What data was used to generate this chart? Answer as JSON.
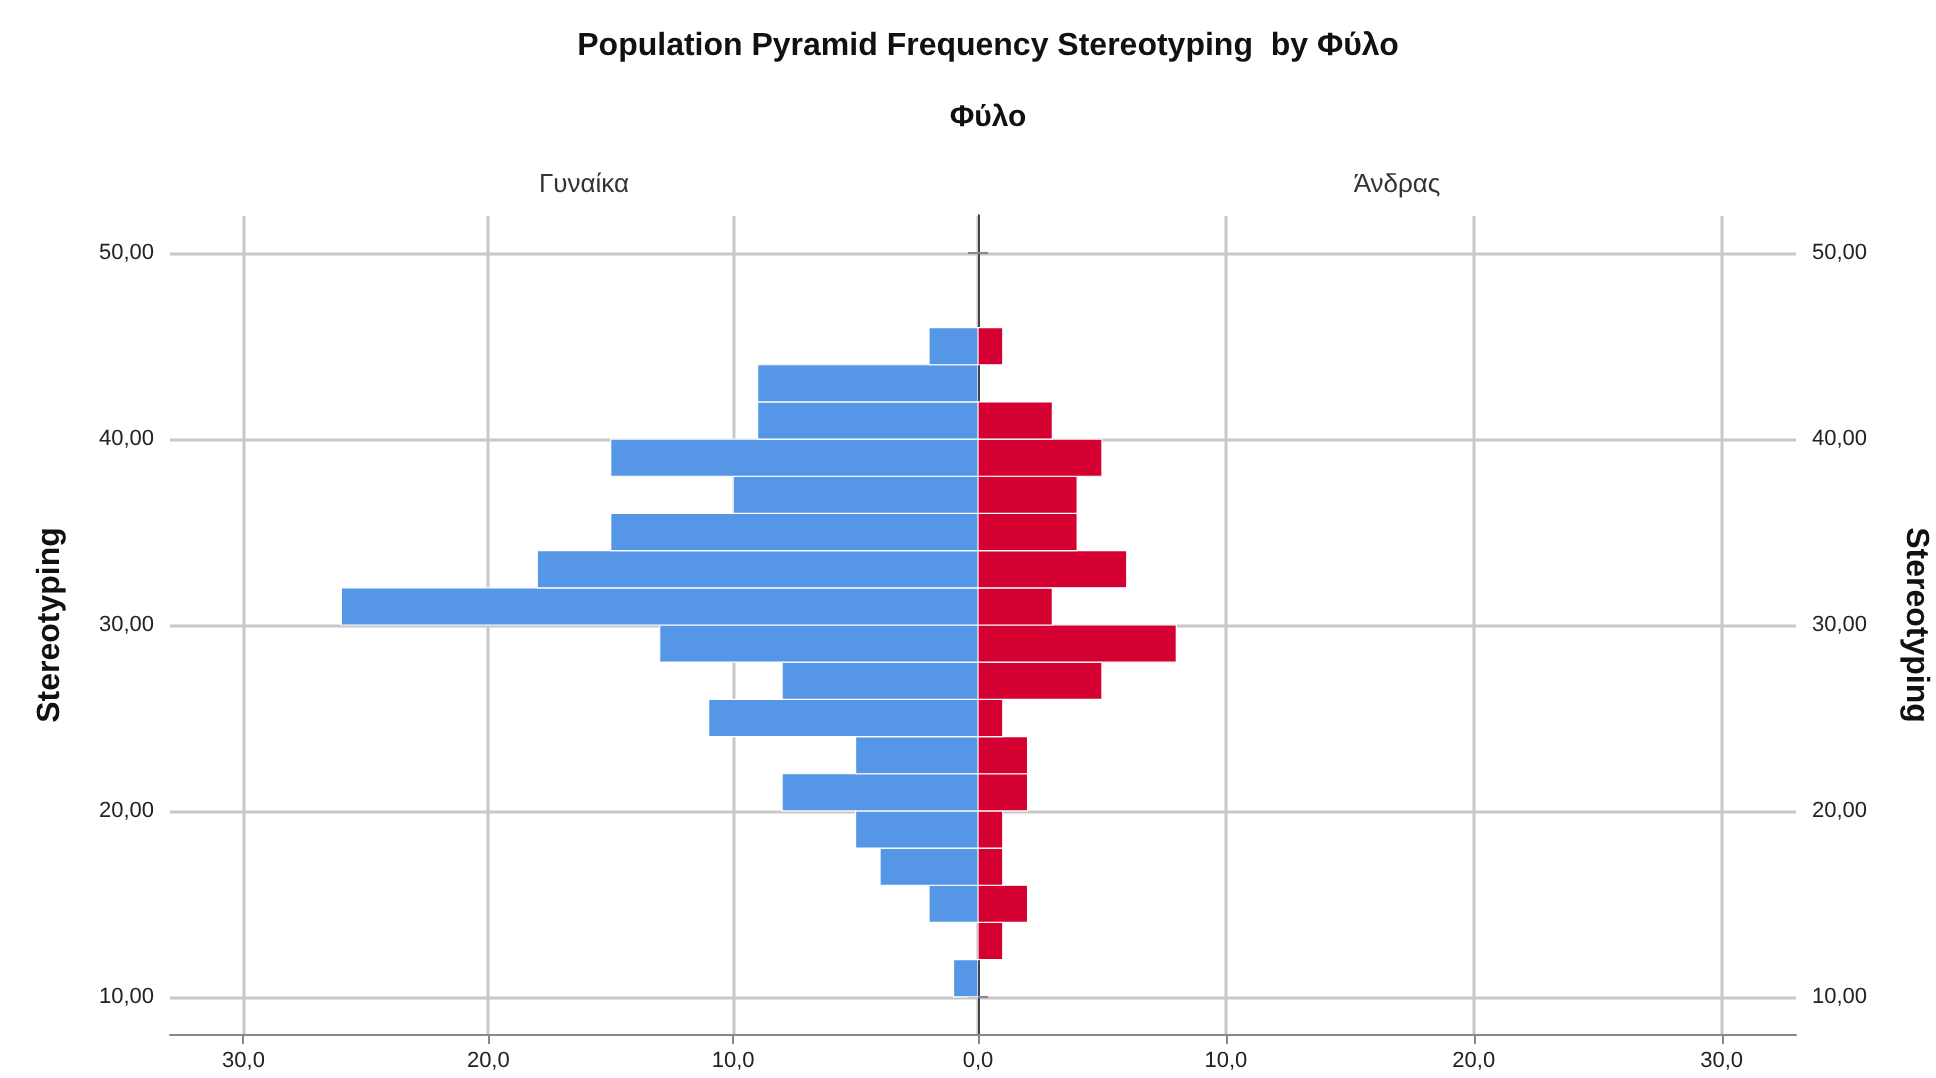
{
  "chart_data": [
    {
      "type": "histogram",
      "title": "Population Pyramid Frequency Stereotyping  by Φύλο",
      "subtitle": "Φύλο",
      "ylabel": "Stereotyping",
      "orientation": "horizontal",
      "bins": [
        10,
        12,
        14,
        16,
        18,
        20,
        22,
        24,
        26,
        28,
        30,
        32,
        34,
        36,
        38,
        40,
        42,
        44,
        46
      ],
      "series": [
        {
          "name": "Γυναίκα",
          "color": "#5596e6",
          "values": [
            1,
            0,
            2,
            4,
            5,
            8,
            5,
            11,
            8,
            13,
            26,
            18,
            15,
            10,
            15,
            9,
            9,
            2
          ]
        }
      ],
      "xlim": [
        33,
        0
      ],
      "xticks": [
        {
          "value": 0,
          "label": "0,0"
        },
        {
          "value": 10,
          "label": "10,0"
        },
        {
          "value": 20,
          "label": "20,0"
        },
        {
          "value": 30,
          "label": "30,0"
        }
      ],
      "ylim": [
        8,
        52
      ],
      "yticks": [
        {
          "value": 10,
          "label": "10,00"
        },
        {
          "value": 20,
          "label": "20,00"
        },
        {
          "value": 30,
          "label": "30,00"
        },
        {
          "value": 40,
          "label": "40,00"
        },
        {
          "value": 50,
          "label": "50,00"
        }
      ],
      "grid": true
    },
    {
      "type": "histogram",
      "ylabel": "Stereotyping",
      "orientation": "horizontal",
      "bins": [
        10,
        12,
        14,
        16,
        18,
        20,
        22,
        24,
        26,
        28,
        30,
        32,
        34,
        36,
        38,
        40,
        42,
        44,
        46
      ],
      "series": [
        {
          "name": "Άνδρας",
          "color": "#d50032",
          "values": [
            0,
            1,
            2,
            1,
            1,
            2,
            2,
            1,
            5,
            8,
            3,
            6,
            4,
            4,
            5,
            3,
            0,
            1
          ]
        }
      ],
      "xlim": [
        0,
        33
      ],
      "xticks": [
        {
          "value": 0,
          "label": null
        },
        {
          "value": 10,
          "label": "10,0"
        },
        {
          "value": 20,
          "label": "20,0"
        },
        {
          "value": 30,
          "label": "30,0"
        }
      ],
      "ylim": [
        8,
        52
      ],
      "yticks": [
        {
          "value": 10,
          "label": "10,00"
        },
        {
          "value": 20,
          "label": "20,00"
        },
        {
          "value": 30,
          "label": "30,00"
        },
        {
          "value": 40,
          "label": "40,00"
        },
        {
          "value": 50,
          "label": "50,00"
        }
      ],
      "grid": true
    }
  ]
}
